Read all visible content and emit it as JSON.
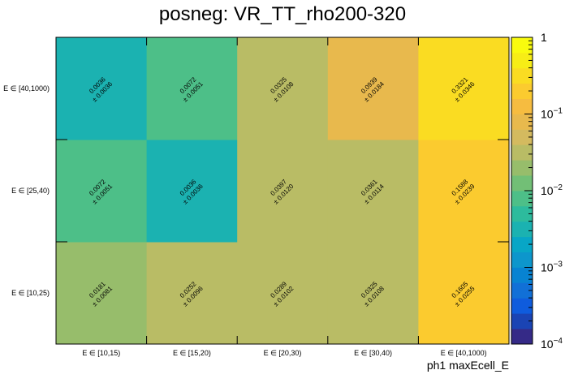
{
  "chart_data": {
    "type": "heatmap",
    "title": "posneg: VR_TT_rho200-320",
    "xlabel": "ph1 maxEcell_E",
    "ylabel": "",
    "x_categories": [
      "E ∈ [10,15)",
      "E ∈ [15,20)",
      "E ∈ [20,30)",
      "E ∈ [30,40)",
      "E ∈ [40,1000)"
    ],
    "y_categories": [
      "E ∈ [10,25)",
      "E ∈ [25,40)",
      "E ∈ [40,1000)"
    ],
    "values": [
      [
        0.0181,
        0.0252,
        0.0289,
        0.0325,
        0.1605
      ],
      [
        0.0072,
        0.0036,
        0.0397,
        0.0361,
        0.1588
      ],
      [
        0.0036,
        0.0072,
        0.0325,
        0.0939,
        0.3321
      ]
    ],
    "errors": [
      [
        0.0081,
        0.0096,
        0.0102,
        0.0108,
        0.0255
      ],
      [
        0.0051,
        0.0036,
        0.012,
        0.0114,
        0.0239
      ],
      [
        0.0036,
        0.0051,
        0.0108,
        0.0184,
        0.0346
      ]
    ],
    "value_labels": [
      [
        "0.0181",
        "0.0252",
        "0.0289",
        "0.0325",
        "0.1605"
      ],
      [
        "0.0072",
        "0.0036",
        "0.0397",
        "0.0361",
        "0.1588"
      ],
      [
        "0.0036",
        "0.0072",
        "0.0325",
        "0.0939",
        "0.3321"
      ]
    ],
    "error_labels": [
      [
        "± 0.0081",
        "± 0.0096",
        "± 0.0102",
        "± 0.0108",
        "± 0.0255"
      ],
      [
        "± 0.0051",
        "± 0.0036",
        "± 0.0120",
        "± 0.0114",
        "± 0.0239"
      ],
      [
        "± 0.0036",
        "± 0.0051",
        "± 0.0108",
        "± 0.0184",
        "± 0.0346"
      ]
    ],
    "z_scale": "log",
    "z_range": [
      0.0001,
      1
    ],
    "z_tick_labels": [
      {
        "base": "10",
        "exp": "−4"
      },
      {
        "base": "10",
        "exp": "−3"
      },
      {
        "base": "10",
        "exp": "−2"
      },
      {
        "base": "10",
        "exp": "−1"
      },
      {
        "base": "1",
        "exp": ""
      }
    ],
    "palette": [
      "#352a87",
      "#1a44b4",
      "#0f5cdd",
      "#1170d7",
      "#0883d2",
      "#0d96cc",
      "#08a6c6",
      "#1bb2b1",
      "#2dbb9d",
      "#4dbf88",
      "#72bf76",
      "#97bd6b",
      "#b9bc65",
      "#d4ba5f",
      "#e8b94d",
      "#f6bc40",
      "#fbcb2f",
      "#fadc22",
      "#f7ed16",
      "#f9fb0e"
    ],
    "grid": false,
    "legend": "colorbar-right"
  }
}
